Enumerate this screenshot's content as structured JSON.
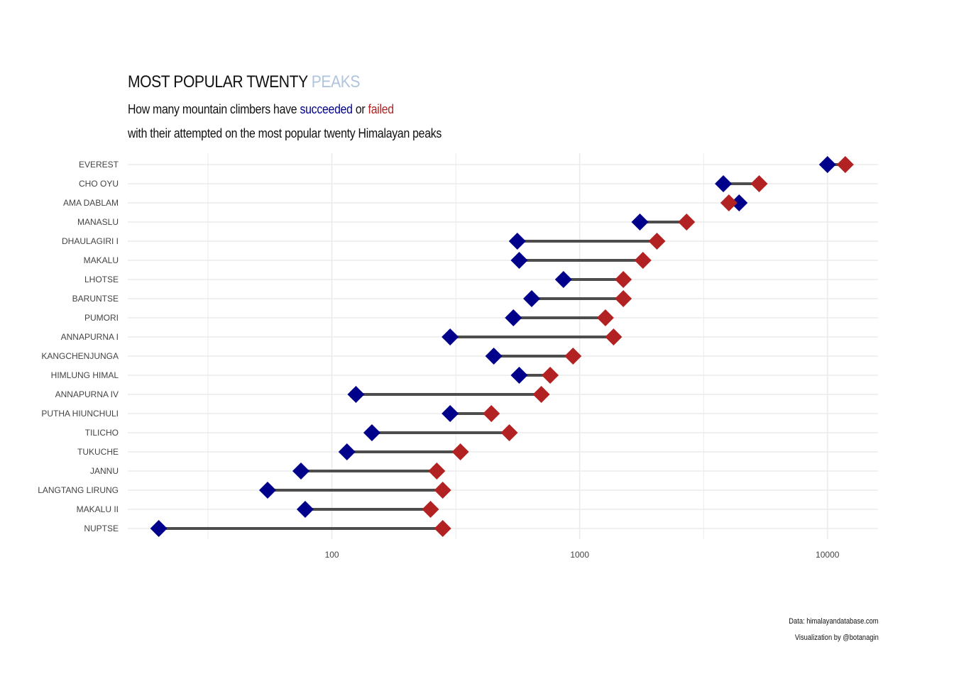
{
  "title": {
    "main": "MOST POPULAR TWENTY",
    "accent": "PEAKS",
    "accent_color": "#b0c4de"
  },
  "subtitle": {
    "line1_prefix": "How many mountain climbers have",
    "succeeded": "succeeded",
    "or": "or",
    "failed": "failed",
    "line2": "with their attempted on the most popular twenty Himalayan peaks"
  },
  "caption": {
    "line1": "Data: himalayandatabase.com",
    "line2": "Visualization by @botanagin"
  },
  "colors": {
    "succeeded": "#00008b",
    "failed": "#b22222",
    "segment": "#4d4d4d",
    "grid": "#ebebeb"
  },
  "chart_data": {
    "type": "dumbbell",
    "x_scale": "log10",
    "xlim": [
      15,
      16000
    ],
    "x_ticks": [
      100,
      1000,
      10000
    ],
    "x_tick_labels": [
      "100",
      "1000",
      "10000"
    ],
    "grid": true,
    "legend": "none",
    "categories": [
      "EVEREST",
      "CHO OYU",
      "AMA DABLAM",
      "MANASLU",
      "DHAULAGIRI I",
      "MAKALU",
      "LHOTSE",
      "BARUNTSE",
      "PUMORI",
      "ANNAPURNA I",
      "KANGCHENJUNGA",
      "HIMLUNG HIMAL",
      "ANNAPURNA IV",
      "PUTHA HIUNCHULI",
      "TILICHO",
      "TUKUCHE",
      "JANNU",
      "LANGTANG LIRUNG",
      "MAKALU II",
      "NUPTSE"
    ],
    "series": [
      {
        "name": "succeeded",
        "values": [
          10000,
          3800,
          4400,
          1750,
          560,
          570,
          860,
          640,
          540,
          300,
          450,
          570,
          125,
          300,
          145,
          115,
          75,
          55,
          78,
          20
        ]
      },
      {
        "name": "failed",
        "values": [
          11800,
          5300,
          4000,
          2700,
          2050,
          1800,
          1500,
          1500,
          1270,
          1370,
          940,
          760,
          700,
          440,
          520,
          330,
          265,
          280,
          250,
          280
        ]
      }
    ]
  }
}
